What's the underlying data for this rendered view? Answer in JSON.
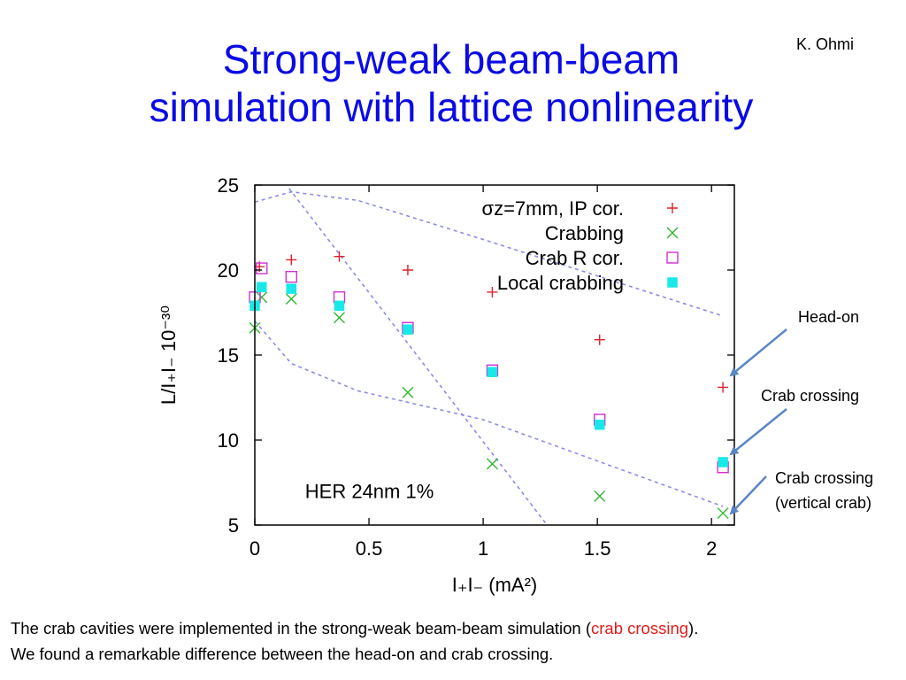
{
  "slide": {
    "title_line1": "Strong-weak beam-beam",
    "title_line2": "simulation with lattice nonlinearity",
    "author": "K. Ohmi",
    "annotations": {
      "head_on": "Head-on",
      "crab_crossing": "Crab crossing",
      "crab_crossing_vertical_1": "Crab crossing",
      "crab_crossing_vertical_2": "(vertical crab)"
    },
    "caption": {
      "line1_pre": "The crab cavities were implemented in the strong-weak beam-beam simulation (",
      "line1_red": "crab crossing",
      "line1_post": ").",
      "line2": "We found a remarkable difference between the head-on and crab crossing."
    },
    "colors": {
      "title": "#0a0ae6",
      "caption_highlight": "#e31b1b",
      "arrow": "#5b86c6"
    }
  },
  "chart_data": {
    "type": "scatter",
    "xlabel": "I₊I₋ (mA²)",
    "ylabel": "L/I₊I₋ 10⁻³⁰",
    "xlim": [
      0,
      2.1
    ],
    "ylim": [
      5,
      25
    ],
    "xticks": [
      "0",
      "0.5",
      "1",
      "1.5",
      "2"
    ],
    "xtick_values": [
      0,
      0.5,
      1,
      1.5,
      2
    ],
    "yticks": [
      "5",
      "10",
      "15",
      "20",
      "25"
    ],
    "ytick_values": [
      5,
      10,
      15,
      20,
      25
    ],
    "inner_label": "HER 24nm 1%",
    "legend_position": "top-right",
    "series": [
      {
        "name": "σz=7mm, IP cor.",
        "marker": "plus",
        "color": "#e0202a",
        "points": [
          [
            0.02,
            20.2
          ],
          [
            0.16,
            20.6
          ],
          [
            0.37,
            20.8
          ],
          [
            0.67,
            20.0
          ],
          [
            1.04,
            18.7
          ],
          [
            1.51,
            15.9
          ],
          [
            2.05,
            13.1
          ]
        ]
      },
      {
        "name": "Crabbing",
        "marker": "x",
        "color": "#2eb82e",
        "points": [
          [
            0.0,
            16.6
          ],
          [
            0.03,
            18.4
          ],
          [
            0.16,
            18.3
          ],
          [
            0.37,
            17.2
          ],
          [
            0.67,
            12.8
          ],
          [
            1.04,
            8.6
          ],
          [
            1.51,
            6.7
          ],
          [
            2.05,
            5.7
          ]
        ]
      },
      {
        "name": "Crab R cor.",
        "marker": "open-square",
        "color": "#d22fd2",
        "points": [
          [
            0.0,
            18.4
          ],
          [
            0.03,
            20.1
          ],
          [
            0.16,
            19.6
          ],
          [
            0.37,
            18.4
          ],
          [
            0.67,
            16.6
          ],
          [
            1.04,
            14.1
          ],
          [
            1.51,
            11.2
          ],
          [
            2.05,
            8.4
          ]
        ]
      },
      {
        "name": "Local crabbing",
        "marker": "filled-square",
        "color": "#18e8e8",
        "points": [
          [
            0.0,
            17.9
          ],
          [
            0.03,
            19.0
          ],
          [
            0.16,
            18.9
          ],
          [
            0.37,
            17.9
          ],
          [
            0.67,
            16.5
          ],
          [
            1.04,
            14.0
          ],
          [
            1.51,
            10.9
          ],
          [
            2.05,
            8.7
          ]
        ]
      }
    ],
    "guide_lines": [
      {
        "color": "#8c8ce6",
        "points": [
          [
            0.0,
            24.0
          ],
          [
            0.16,
            24.6
          ],
          [
            0.45,
            24.1
          ],
          [
            1.0,
            21.8
          ],
          [
            2.05,
            17.3
          ]
        ]
      },
      {
        "color": "#8c8ce6",
        "points": [
          [
            0.0,
            17.0
          ],
          [
            0.16,
            14.5
          ],
          [
            0.45,
            12.9
          ],
          [
            1.0,
            11.2
          ],
          [
            2.05,
            6.1
          ]
        ]
      },
      {
        "color": "#8c8ce6",
        "points": [
          [
            0.15,
            24.8
          ],
          [
            1.28,
            5.0
          ]
        ]
      }
    ]
  }
}
